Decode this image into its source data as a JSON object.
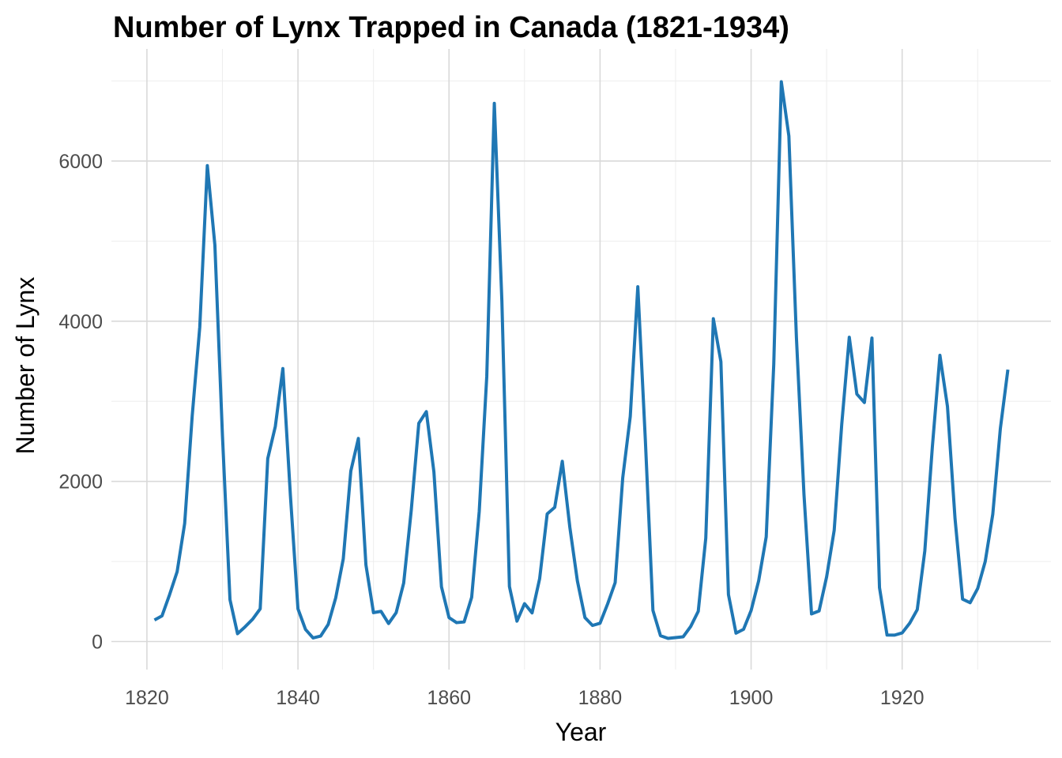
{
  "chart_data": {
    "type": "line",
    "title": "Number of Lynx Trapped in Canada (1821-1934)",
    "xlabel": "Year",
    "ylabel": "Number of Lynx",
    "xlim": [
      1815.3,
      1939.7
    ],
    "ylim": [
      -350,
      7400
    ],
    "x_ticks": [
      1820,
      1840,
      1860,
      1880,
      1900,
      1920
    ],
    "x_tick_labels": [
      "1820",
      "1840",
      "1860",
      "1880",
      "1900",
      "1920"
    ],
    "y_ticks": [
      0,
      2000,
      4000,
      6000
    ],
    "y_tick_labels": [
      "0",
      "2000",
      "4000",
      "6000"
    ],
    "grid": true,
    "line_color": "#1f77b4",
    "series": [
      {
        "x": [
          1821,
          1822,
          1823,
          1824,
          1825,
          1826,
          1827,
          1828,
          1829,
          1830,
          1831,
          1832,
          1833,
          1834,
          1835,
          1836,
          1837,
          1838,
          1839,
          1840,
          1841,
          1842,
          1843,
          1844,
          1845,
          1846,
          1847,
          1848,
          1849,
          1850,
          1851,
          1852,
          1853,
          1854,
          1855,
          1856,
          1857,
          1858,
          1859,
          1860,
          1861,
          1862,
          1863,
          1864,
          1865,
          1866,
          1867,
          1868,
          1869,
          1870,
          1871,
          1872,
          1873,
          1874,
          1875,
          1876,
          1877,
          1878,
          1879,
          1880,
          1881,
          1882,
          1883,
          1884,
          1885,
          1886,
          1887,
          1888,
          1889,
          1890,
          1891,
          1892,
          1893,
          1894,
          1895,
          1896,
          1897,
          1898,
          1899,
          1900,
          1901,
          1902,
          1903,
          1904,
          1905,
          1906,
          1907,
          1908,
          1909,
          1910,
          1911,
          1912,
          1913,
          1914,
          1915,
          1916,
          1917,
          1918,
          1919,
          1920,
          1921,
          1922,
          1923,
          1924,
          1925,
          1926,
          1927,
          1928,
          1929,
          1930,
          1931,
          1932,
          1933,
          1934
        ],
        "y": [
          269,
          321,
          585,
          871,
          1475,
          2821,
          3928,
          5943,
          4950,
          2577,
          523,
          98,
          184,
          279,
          409,
          2285,
          2685,
          3409,
          1824,
          409,
          151,
          45,
          68,
          213,
          546,
          1033,
          2129,
          2536,
          957,
          361,
          377,
          225,
          360,
          731,
          1638,
          2725,
          2871,
          2119,
          684,
          299,
          236,
          245,
          552,
          1623,
          3311,
          6721,
          4254,
          687,
          255,
          473,
          358,
          784,
          1594,
          1676,
          2251,
          1426,
          756,
          299,
          201,
          229,
          469,
          736,
          2042,
          2811,
          4431,
          2511,
          389,
          73,
          39,
          49,
          59,
          188,
          377,
          1292,
          4031,
          3495,
          587,
          105,
          153,
          387,
          758,
          1307,
          3465,
          6991,
          6313,
          3794,
          1836,
          345,
          382,
          808,
          1388,
          2713,
          3800,
          3091,
          2985,
          3790,
          674,
          81,
          80,
          108,
          229,
          399,
          1132,
          2432,
          3574,
          2935,
          1537,
          529,
          485,
          662,
          1000,
          1590,
          2657,
          3396
        ]
      }
    ]
  }
}
